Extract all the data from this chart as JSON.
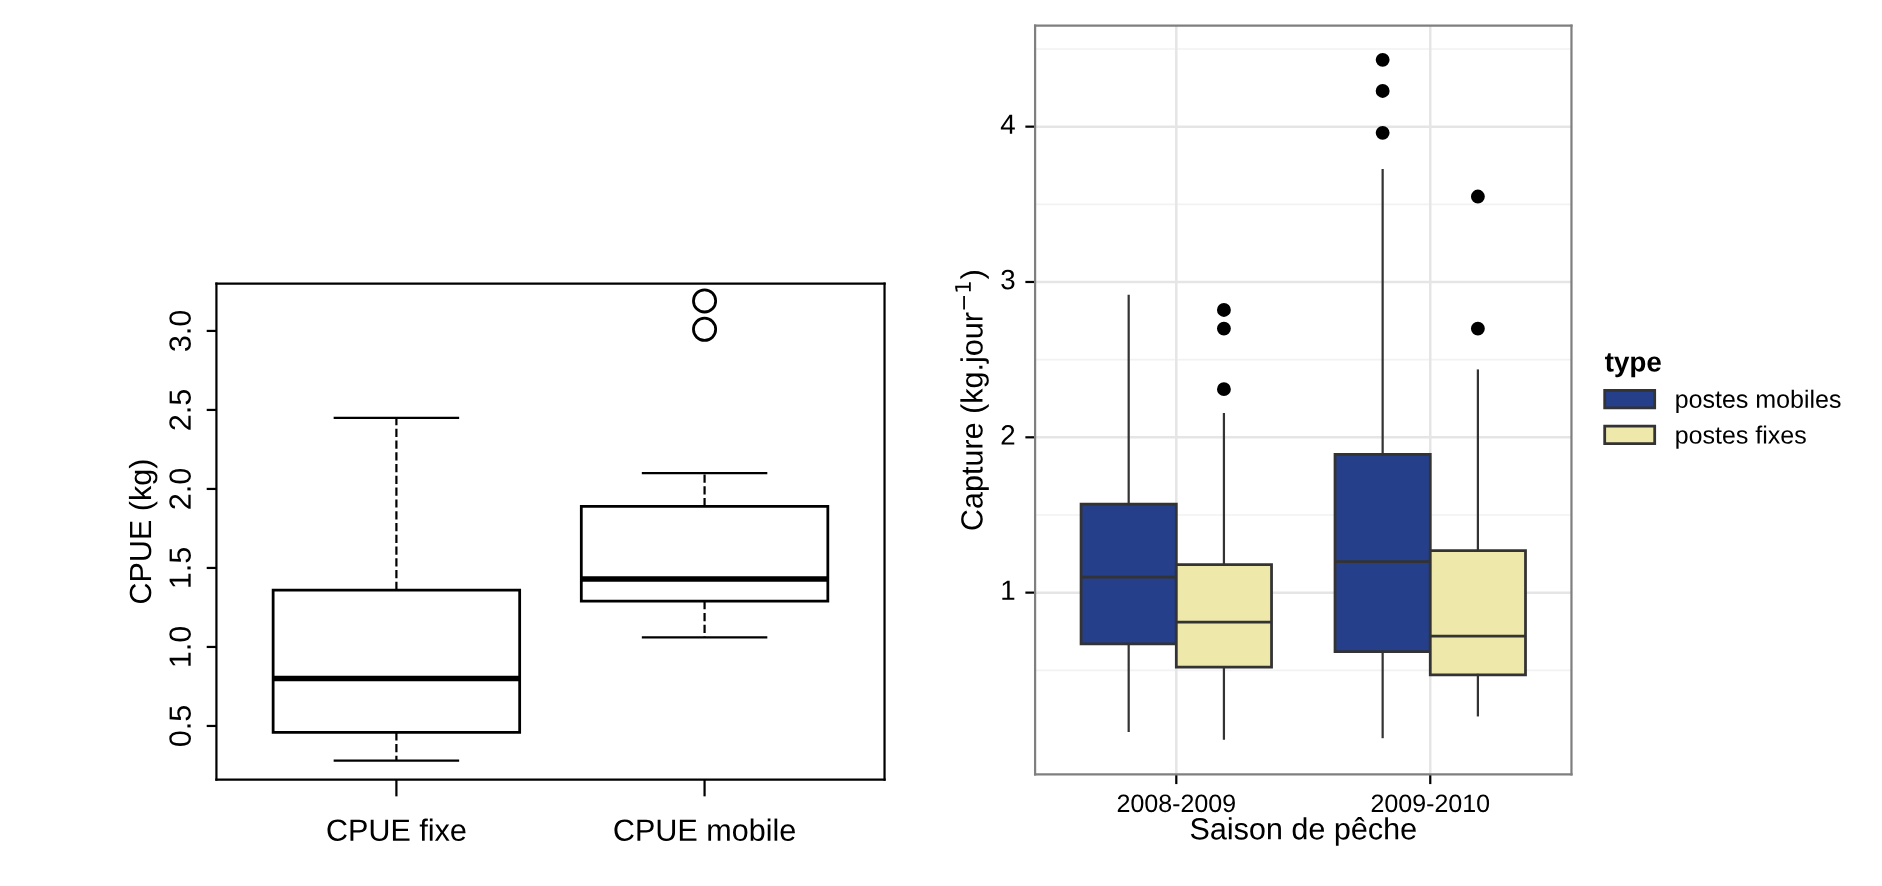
{
  "chart_data": [
    {
      "type": "box",
      "ylabel": "CPUE (kg)",
      "categories": [
        "CPUE fixe",
        "CPUE mobile"
      ],
      "ylim": [
        0.16,
        3.3
      ],
      "yticks": [
        0.5,
        {
          "value": 1,
          "label": "1.0"
        },
        1.5,
        {
          "value": 2,
          "label": "2.0"
        },
        2.5,
        {
          "value": 3,
          "label": "3.0"
        }
      ],
      "grid": false,
      "marker": "circle",
      "boxes": [
        {
          "low": 0.28,
          "q1": 0.46,
          "median": 0.8,
          "q3": 1.36,
          "high": 2.45
        },
        {
          "low": 1.06,
          "q1": 1.29,
          "median": 1.43,
          "q3": 1.89,
          "high": 2.1,
          "outliers": [
            3.01,
            3.19
          ]
        }
      ]
    },
    {
      "type": "box",
      "xlabel": "Saison de pêche",
      "ylabel": "Capture (kg.jour$^{−1}$)",
      "legend_title": "type",
      "categories": [
        "2008-2009",
        "2009-2010"
      ],
      "ylim": [
        -0.17,
        4.65
      ],
      "yticks": [
        1,
        2,
        3,
        4
      ],
      "grid": true,
      "legend": "right",
      "marker": "circle",
      "series": [
        {
          "name": "postes mobiles",
          "color": "#253f8a",
          "boxes": [
            {
              "low": 0.11,
              "q1": 0.67,
              "median": 1.1,
              "q3": 1.57,
              "high": 2.91
            },
            {
              "low": 0.07,
              "q1": 0.62,
              "median": 1.2,
              "q3": 1.89,
              "high": 3.72,
              "outliers": [
                3.96,
                4.23,
                4.43
              ]
            }
          ]
        },
        {
          "name": "postes fixes",
          "color": "#eee8aa",
          "boxes": [
            {
              "low": 0.06,
              "q1": 0.52,
              "median": 0.81,
              "q3": 1.18,
              "high": 2.15,
              "outliers": [
                2.31,
                2.7,
                2.82
              ]
            },
            {
              "low": 0.21,
              "q1": 0.47,
              "median": 0.72,
              "q3": 1.27,
              "high": 2.43,
              "outliers": [
                2.7,
                3.55
              ]
            }
          ]
        }
      ]
    }
  ]
}
